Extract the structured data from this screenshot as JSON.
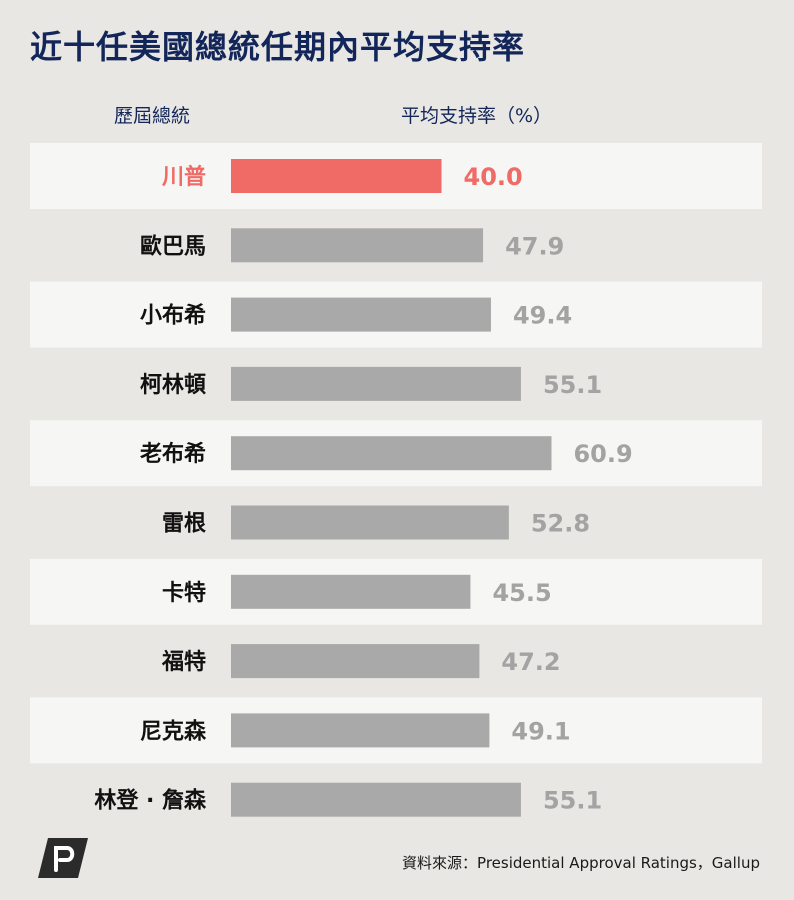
{
  "title": "近十任美國總統任期內平均支持率",
  "headers": {
    "left": "歷屆總統",
    "right": "平均支持率（%）"
  },
  "colors": {
    "highlight": "#f06a66",
    "bar": "#a9a9a9",
    "value_label": "#a3a3a3",
    "title": "#13265a",
    "row_band": "#f6f6f4"
  },
  "chart_data": {
    "type": "bar",
    "orientation": "horizontal",
    "categories": [
      "川普",
      "歐巴馬",
      "小布希",
      "柯林頓",
      "老布希",
      "雷根",
      "卡特",
      "福特",
      "尼克森",
      "林登 · 詹森"
    ],
    "values": [
      40.0,
      47.9,
      49.4,
      55.1,
      60.9,
      52.8,
      45.5,
      47.2,
      49.1,
      55.1
    ],
    "value_labels": [
      "40.0",
      "47.9",
      "49.4",
      "55.1",
      "60.9",
      "52.8",
      "45.5",
      "47.2",
      "49.1",
      "55.1"
    ],
    "highlight_index": 0,
    "xlim": [
      0,
      80
    ],
    "grid": false
  },
  "source": "資料來源：Presidential Approval Ratings，Gallup",
  "logo_icon": "p-logo-icon"
}
